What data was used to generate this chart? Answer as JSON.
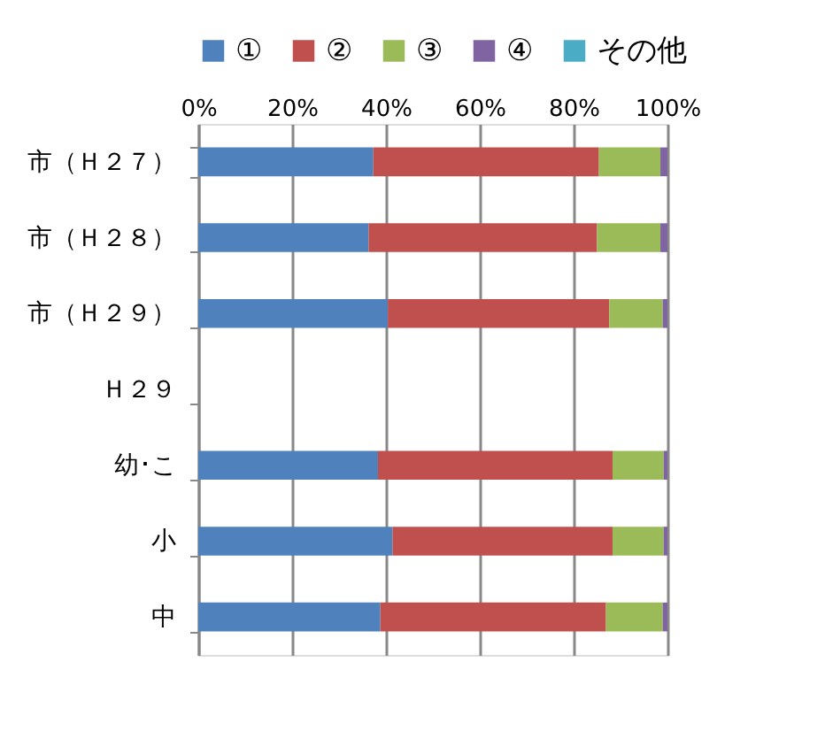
{
  "chart_data": {
    "type": "bar",
    "orientation": "horizontal",
    "stacked": true,
    "categories": [
      "市（Ｈ２７）",
      "市（Ｈ２８）",
      "市（Ｈ２９）",
      "Ｈ２９",
      "幼･こ",
      "小",
      "中"
    ],
    "series": [
      {
        "name": "①",
        "color": "#4f81bd",
        "values": [
          37.3,
          36.3,
          40.4,
          null,
          38.3,
          41.4,
          38.8
        ]
      },
      {
        "name": "②",
        "color": "#c0504d",
        "values": [
          48.1,
          48.7,
          47.2,
          null,
          50.0,
          46.9,
          48.1
        ]
      },
      {
        "name": "③",
        "color": "#9bbb59",
        "values": [
          13.1,
          13.5,
          11.4,
          null,
          10.9,
          10.9,
          12.1
        ]
      },
      {
        "name": "④",
        "color": "#8064a2",
        "values": [
          1.5,
          1.5,
          1.0,
          null,
          0.8,
          0.8,
          1.0
        ]
      },
      {
        "name": "その他",
        "color": "#4bacc6",
        "values": [
          null,
          null,
          null,
          null,
          null,
          null,
          null
        ]
      }
    ],
    "xlim": [
      0,
      100
    ],
    "xticks": [
      {
        "value": 0,
        "label": "0%"
      },
      {
        "value": 20,
        "label": "20%"
      },
      {
        "value": 40,
        "label": "40%"
      },
      {
        "value": 60,
        "label": "60%"
      },
      {
        "value": 80,
        "label": "80%"
      },
      {
        "value": 100,
        "label": "100%"
      }
    ],
    "grid": "x",
    "legend": "top"
  }
}
